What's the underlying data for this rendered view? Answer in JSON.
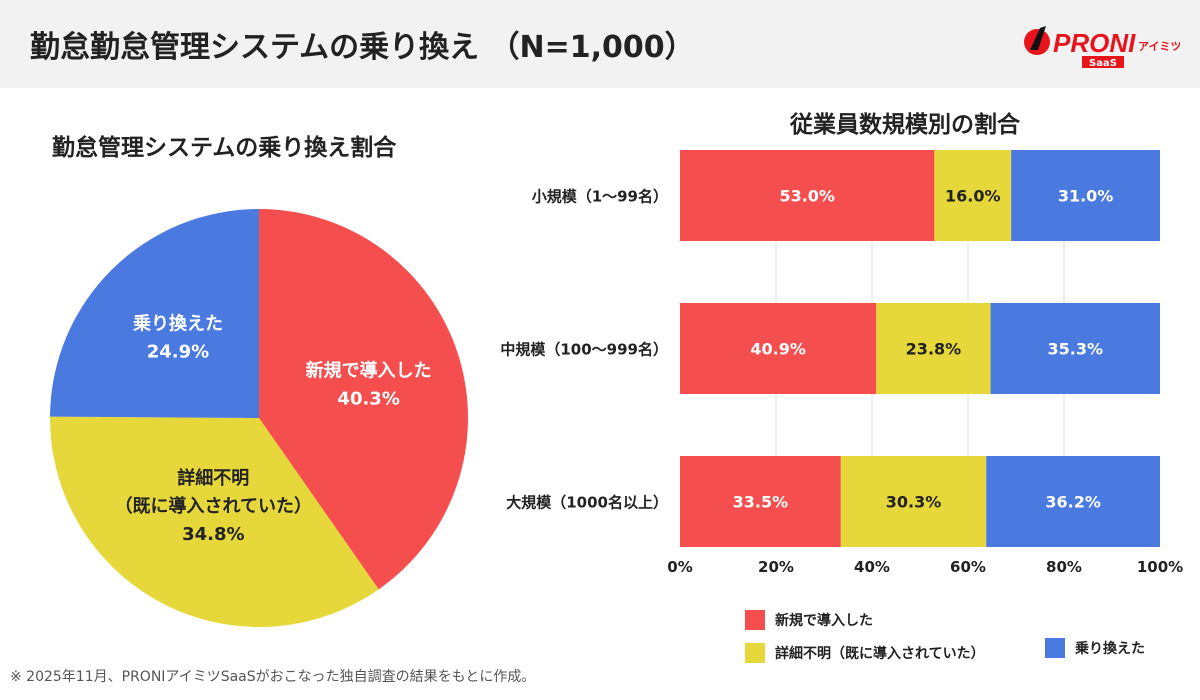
{
  "header": {
    "title": "勤怠勤怠管理システムの乗り換え （N=1,000）",
    "logo_text": "PRONIアイミツ SaaS"
  },
  "colors": {
    "red": "#f44e4e",
    "yellow": "#e6d83a",
    "blue": "#4a79e0"
  },
  "chart_data": [
    {
      "type": "pie",
      "title": "勤怠管理システムの乗り換え割合",
      "slices": [
        {
          "label": "新規で導入した",
          "value": 40.3,
          "value_label": "40.3%",
          "color": "#f44e4e"
        },
        {
          "label": "詳細不明\n（既に導入されていた）",
          "value": 34.8,
          "value_label": "34.8%",
          "color": "#e6d83a"
        },
        {
          "label": "乗り換えた",
          "value": 24.9,
          "value_label": "24.9%",
          "color": "#4a79e0"
        }
      ]
    },
    {
      "type": "bar",
      "orientation": "horizontal",
      "stacked": true,
      "title": "従業員数規模別の割合",
      "categories": [
        "小規模（1〜99名）",
        "中規模（100〜999名）",
        "大規模（1000名以上）"
      ],
      "series": [
        {
          "name": "新規で導入した",
          "values": [
            53.0,
            40.9,
            33.5
          ],
          "color": "#f44e4e",
          "label_color": "#fff"
        },
        {
          "name": "詳細不明（既に導入されていた）",
          "values": [
            16.0,
            23.8,
            30.3
          ],
          "color": "#e6d83a",
          "label_color": "#222"
        },
        {
          "name": "乗り換えた",
          "values": [
            31.0,
            35.3,
            36.2
          ],
          "color": "#4a79e0",
          "label_color": "#fff"
        }
      ],
      "xlim": [
        0,
        100
      ],
      "xticks": [
        "0%",
        "20%",
        "40%",
        "60%",
        "80%",
        "100%"
      ],
      "grid": true,
      "legend": "bottom"
    }
  ],
  "footnote": "※ 2025年11月、PRONIアイミツSaaSがおこなった独自調査の結果をもとに作成。"
}
